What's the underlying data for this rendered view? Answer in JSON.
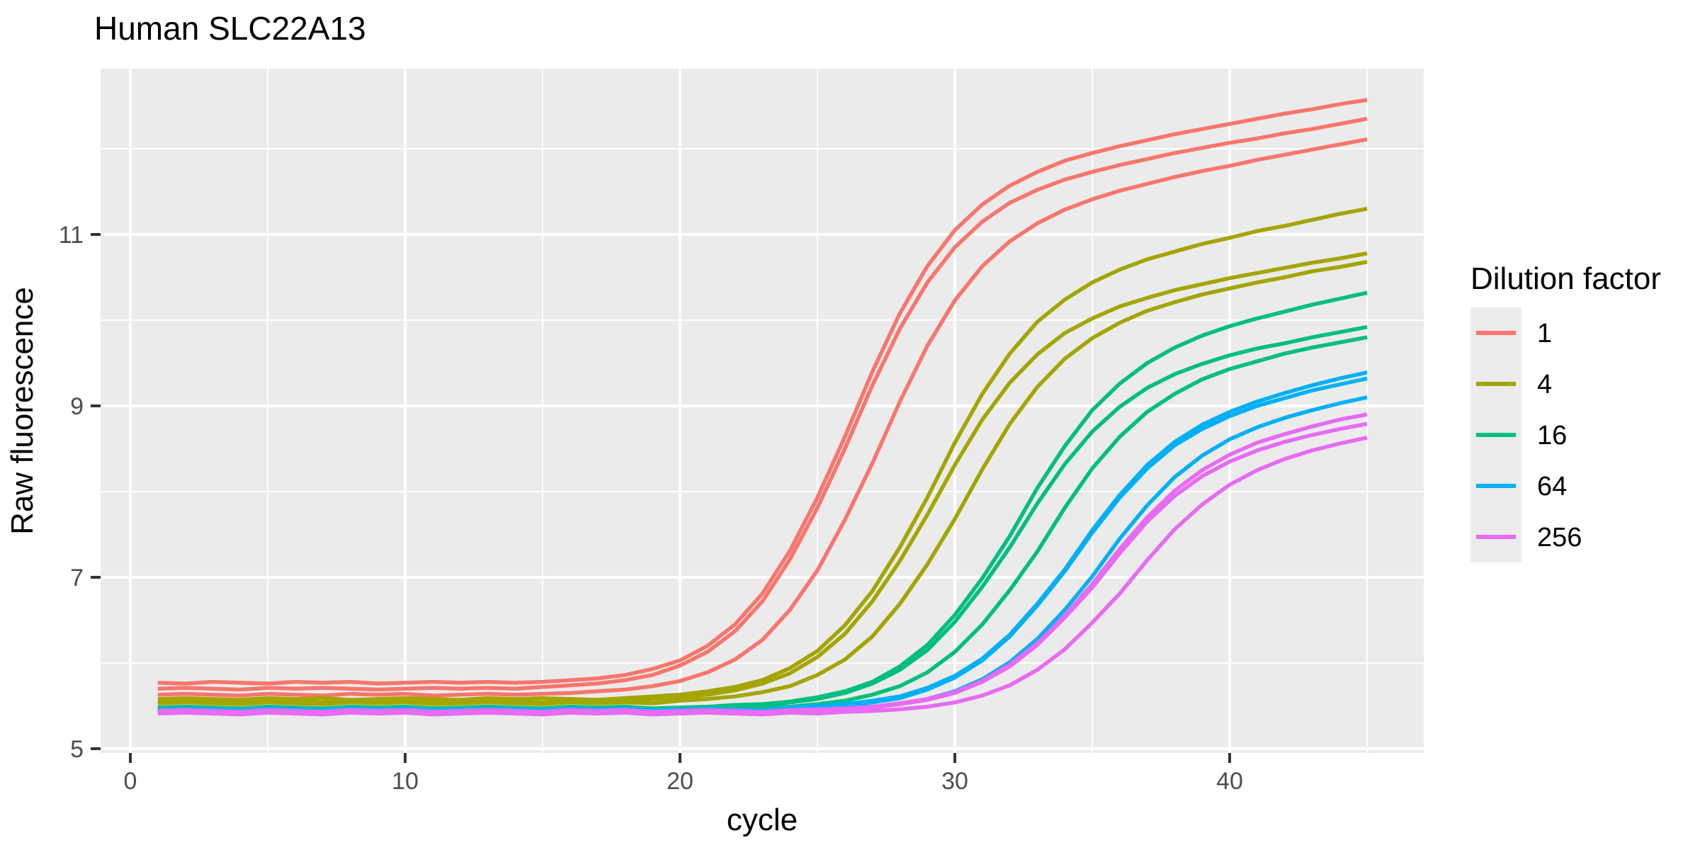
{
  "title": "Human SLC22A13",
  "axes": {
    "x": {
      "label": "cycle",
      "ticks": [
        0,
        10,
        20,
        30,
        40
      ],
      "minor_ticks": [
        5,
        15,
        25,
        35,
        45
      ],
      "range": [
        -1.1,
        47.3
      ]
    },
    "y": {
      "label": "Raw fluorescence",
      "ticks": [
        5,
        7,
        9,
        11
      ],
      "minor_ticks": [
        6,
        8,
        10,
        12
      ],
      "range": [
        4.94,
        12.93
      ]
    }
  },
  "legend": {
    "title": "Dilution factor",
    "entries": [
      {
        "label": "1",
        "color": "#F8766D"
      },
      {
        "label": "4",
        "color": "#A3A500"
      },
      {
        "label": "16",
        "color": "#00BF7D"
      },
      {
        "label": "64",
        "color": "#00B0F6"
      },
      {
        "label": "256",
        "color": "#E76BF3"
      }
    ]
  },
  "colors": {
    "panel_background": "#EBEBEB",
    "grid": "#FFFFFF",
    "tick_text": "#4D4D4D",
    "tick_mark": "#333333",
    "title_text": "#000000",
    "page_background": "#FFFFFF"
  },
  "chart_data": {
    "type": "line",
    "title": "Human SLC22A13",
    "xlabel": "cycle",
    "ylabel": "Raw fluorescence",
    "legend_title": "Dilution factor",
    "xlim": [
      -1.1,
      47.3
    ],
    "ylim": [
      4.94,
      12.93
    ],
    "grid": true,
    "legend_position": "right",
    "x": [
      1,
      2,
      3,
      4,
      5,
      6,
      7,
      8,
      9,
      10,
      11,
      12,
      13,
      14,
      15,
      16,
      17,
      18,
      19,
      20,
      21,
      22,
      23,
      24,
      25,
      26,
      27,
      28,
      29,
      30,
      31,
      32,
      33,
      34,
      35,
      36,
      37,
      38,
      39,
      40,
      41,
      42,
      43,
      44,
      45
    ],
    "series": [
      {
        "name": "1 rep1",
        "dilution": "1",
        "color": "#F8766D",
        "values": [
          5.77,
          5.76,
          5.78,
          5.77,
          5.76,
          5.78,
          5.77,
          5.78,
          5.76,
          5.77,
          5.78,
          5.77,
          5.78,
          5.77,
          5.78,
          5.8,
          5.82,
          5.86,
          5.93,
          6.03,
          6.2,
          6.45,
          6.81,
          7.31,
          7.93,
          8.64,
          9.4,
          10.08,
          10.63,
          11.05,
          11.35,
          11.57,
          11.73,
          11.86,
          11.95,
          12.03,
          12.1,
          12.17,
          12.23,
          12.29,
          12.35,
          12.41,
          12.46,
          12.52,
          12.57
        ]
      },
      {
        "name": "1 rep2",
        "dilution": "1",
        "color": "#F8766D",
        "values": [
          5.7,
          5.71,
          5.7,
          5.69,
          5.71,
          5.7,
          5.71,
          5.7,
          5.69,
          5.7,
          5.71,
          5.7,
          5.71,
          5.7,
          5.72,
          5.74,
          5.76,
          5.8,
          5.86,
          5.97,
          6.13,
          6.37,
          6.72,
          7.21,
          7.81,
          8.5,
          9.24,
          9.9,
          10.44,
          10.85,
          11.15,
          11.37,
          11.52,
          11.64,
          11.73,
          11.81,
          11.88,
          11.95,
          12.01,
          12.07,
          12.12,
          12.18,
          12.23,
          12.29,
          12.35
        ]
      },
      {
        "name": "1 rep3",
        "dilution": "1",
        "color": "#F8766D",
        "values": [
          5.63,
          5.64,
          5.63,
          5.62,
          5.64,
          5.63,
          5.62,
          5.64,
          5.63,
          5.64,
          5.62,
          5.63,
          5.64,
          5.63,
          5.64,
          5.65,
          5.67,
          5.69,
          5.73,
          5.79,
          5.89,
          6.04,
          6.27,
          6.62,
          7.08,
          7.67,
          8.33,
          9.05,
          9.7,
          10.23,
          10.63,
          10.92,
          11.13,
          11.29,
          11.41,
          11.51,
          11.59,
          11.67,
          11.74,
          11.8,
          11.87,
          11.93,
          11.99,
          12.05,
          12.11
        ]
      },
      {
        "name": "4 rep1",
        "dilution": "4",
        "color": "#A3A500",
        "values": [
          5.58,
          5.59,
          5.58,
          5.57,
          5.59,
          5.58,
          5.59,
          5.57,
          5.58,
          5.59,
          5.58,
          5.57,
          5.59,
          5.58,
          5.59,
          5.58,
          5.57,
          5.59,
          5.61,
          5.63,
          5.67,
          5.72,
          5.8,
          5.94,
          6.14,
          6.44,
          6.84,
          7.35,
          7.93,
          8.57,
          9.14,
          9.61,
          9.98,
          10.24,
          10.44,
          10.59,
          10.71,
          10.8,
          10.89,
          10.96,
          11.04,
          11.1,
          11.17,
          11.24,
          11.3
        ]
      },
      {
        "name": "4 rep2",
        "dilution": "4",
        "color": "#A3A500",
        "values": [
          5.55,
          5.56,
          5.55,
          5.54,
          5.56,
          5.55,
          5.54,
          5.56,
          5.55,
          5.56,
          5.54,
          5.55,
          5.56,
          5.55,
          5.54,
          5.56,
          5.55,
          5.56,
          5.58,
          5.6,
          5.63,
          5.68,
          5.76,
          5.88,
          6.07,
          6.34,
          6.72,
          7.19,
          7.73,
          8.31,
          8.84,
          9.27,
          9.6,
          9.85,
          10.02,
          10.16,
          10.26,
          10.35,
          10.42,
          10.49,
          10.55,
          10.61,
          10.67,
          10.72,
          10.78
        ]
      },
      {
        "name": "4 rep3",
        "dilution": "4",
        "color": "#A3A500",
        "values": [
          5.53,
          5.54,
          5.53,
          5.52,
          5.54,
          5.53,
          5.52,
          5.54,
          5.53,
          5.54,
          5.52,
          5.53,
          5.54,
          5.53,
          5.52,
          5.54,
          5.53,
          5.54,
          5.53,
          5.56,
          5.58,
          5.61,
          5.66,
          5.73,
          5.86,
          6.04,
          6.31,
          6.69,
          7.15,
          7.68,
          8.26,
          8.79,
          9.22,
          9.55,
          9.79,
          9.97,
          10.11,
          10.21,
          10.3,
          10.37,
          10.44,
          10.5,
          10.57,
          10.62,
          10.68
        ]
      },
      {
        "name": "16 rep1",
        "dilution": "16",
        "color": "#00BF7D",
        "values": [
          5.48,
          5.49,
          5.48,
          5.47,
          5.49,
          5.48,
          5.47,
          5.49,
          5.48,
          5.49,
          5.47,
          5.48,
          5.49,
          5.48,
          5.47,
          5.49,
          5.48,
          5.49,
          5.47,
          5.48,
          5.49,
          5.51,
          5.52,
          5.55,
          5.6,
          5.67,
          5.78,
          5.96,
          6.21,
          6.56,
          6.99,
          7.48,
          8.04,
          8.53,
          8.95,
          9.26,
          9.5,
          9.68,
          9.82,
          9.93,
          10.02,
          10.1,
          10.18,
          10.25,
          10.32
        ]
      },
      {
        "name": "16 rep2",
        "dilution": "16",
        "color": "#00BF7D",
        "values": [
          5.47,
          5.48,
          5.47,
          5.46,
          5.48,
          5.47,
          5.46,
          5.48,
          5.47,
          5.48,
          5.46,
          5.47,
          5.48,
          5.47,
          5.46,
          5.48,
          5.47,
          5.48,
          5.46,
          5.47,
          5.48,
          5.5,
          5.51,
          5.54,
          5.58,
          5.65,
          5.76,
          5.92,
          6.15,
          6.48,
          6.89,
          7.35,
          7.86,
          8.32,
          8.7,
          8.99,
          9.21,
          9.37,
          9.49,
          9.59,
          9.67,
          9.73,
          9.8,
          9.86,
          9.92
        ]
      },
      {
        "name": "16 rep3",
        "dilution": "16",
        "color": "#00BF7D",
        "values": [
          5.45,
          5.46,
          5.45,
          5.44,
          5.46,
          5.45,
          5.44,
          5.46,
          5.45,
          5.46,
          5.44,
          5.45,
          5.46,
          5.45,
          5.44,
          5.46,
          5.45,
          5.46,
          5.44,
          5.45,
          5.46,
          5.45,
          5.48,
          5.49,
          5.52,
          5.56,
          5.63,
          5.73,
          5.89,
          6.13,
          6.45,
          6.85,
          7.3,
          7.81,
          8.27,
          8.64,
          8.93,
          9.14,
          9.31,
          9.43,
          9.52,
          9.61,
          9.68,
          9.74,
          9.8
        ]
      },
      {
        "name": "64 rep1",
        "dilution": "64",
        "color": "#00B0F6",
        "values": [
          5.46,
          5.47,
          5.46,
          5.45,
          5.47,
          5.46,
          5.45,
          5.47,
          5.46,
          5.47,
          5.45,
          5.46,
          5.47,
          5.46,
          5.45,
          5.47,
          5.46,
          5.47,
          5.45,
          5.46,
          5.47,
          5.46,
          5.45,
          5.48,
          5.5,
          5.52,
          5.56,
          5.61,
          5.71,
          5.85,
          6.05,
          6.33,
          6.69,
          7.09,
          7.55,
          7.96,
          8.31,
          8.58,
          8.78,
          8.93,
          9.05,
          9.15,
          9.24,
          9.32,
          9.39
        ]
      },
      {
        "name": "64 rep2",
        "dilution": "64",
        "color": "#00B0F6",
        "values": [
          5.44,
          5.45,
          5.44,
          5.43,
          5.45,
          5.44,
          5.43,
          5.45,
          5.44,
          5.45,
          5.43,
          5.44,
          5.45,
          5.44,
          5.43,
          5.45,
          5.44,
          5.45,
          5.43,
          5.44,
          5.45,
          5.44,
          5.43,
          5.46,
          5.48,
          5.5,
          5.54,
          5.59,
          5.69,
          5.83,
          6.03,
          6.31,
          6.67,
          7.07,
          7.52,
          7.93,
          8.27,
          8.54,
          8.73,
          8.88,
          9.0,
          9.09,
          9.18,
          9.25,
          9.32
        ]
      },
      {
        "name": "64 rep3",
        "dilution": "64",
        "color": "#00B0F6",
        "values": [
          5.43,
          5.44,
          5.43,
          5.42,
          5.44,
          5.43,
          5.42,
          5.44,
          5.43,
          5.44,
          5.42,
          5.43,
          5.44,
          5.43,
          5.42,
          5.44,
          5.43,
          5.44,
          5.42,
          5.43,
          5.44,
          5.43,
          5.42,
          5.44,
          5.45,
          5.47,
          5.49,
          5.52,
          5.58,
          5.67,
          5.81,
          6.01,
          6.28,
          6.62,
          7.01,
          7.45,
          7.84,
          8.17,
          8.42,
          8.61,
          8.75,
          8.86,
          8.95,
          9.03,
          9.1
        ]
      },
      {
        "name": "256 rep1",
        "dilution": "256",
        "color": "#E76BF3",
        "values": [
          5.44,
          5.45,
          5.44,
          5.43,
          5.45,
          5.44,
          5.43,
          5.45,
          5.44,
          5.45,
          5.43,
          5.44,
          5.45,
          5.44,
          5.43,
          5.45,
          5.44,
          5.45,
          5.43,
          5.44,
          5.45,
          5.44,
          5.43,
          5.45,
          5.46,
          5.47,
          5.49,
          5.53,
          5.58,
          5.66,
          5.79,
          5.98,
          6.23,
          6.55,
          6.92,
          7.33,
          7.7,
          8.01,
          8.25,
          8.43,
          8.57,
          8.67,
          8.76,
          8.84,
          8.9
        ]
      },
      {
        "name": "256 rep2",
        "dilution": "256",
        "color": "#E76BF3",
        "values": [
          5.43,
          5.44,
          5.43,
          5.42,
          5.44,
          5.43,
          5.42,
          5.44,
          5.43,
          5.44,
          5.42,
          5.43,
          5.44,
          5.43,
          5.42,
          5.44,
          5.43,
          5.44,
          5.42,
          5.43,
          5.44,
          5.43,
          5.42,
          5.44,
          5.45,
          5.46,
          5.48,
          5.52,
          5.57,
          5.65,
          5.78,
          5.96,
          6.21,
          6.53,
          6.88,
          7.28,
          7.65,
          7.95,
          8.18,
          8.35,
          8.48,
          8.58,
          8.66,
          8.73,
          8.79
        ]
      },
      {
        "name": "256 rep3",
        "dilution": "256",
        "color": "#E76BF3",
        "values": [
          5.41,
          5.42,
          5.41,
          5.4,
          5.42,
          5.41,
          5.4,
          5.42,
          5.41,
          5.42,
          5.4,
          5.41,
          5.42,
          5.41,
          5.4,
          5.42,
          5.41,
          5.42,
          5.4,
          5.41,
          5.42,
          5.41,
          5.4,
          5.42,
          5.41,
          5.43,
          5.44,
          5.46,
          5.49,
          5.54,
          5.62,
          5.74,
          5.92,
          6.16,
          6.47,
          6.81,
          7.2,
          7.56,
          7.85,
          8.08,
          8.25,
          8.38,
          8.48,
          8.56,
          8.63
        ]
      }
    ]
  }
}
